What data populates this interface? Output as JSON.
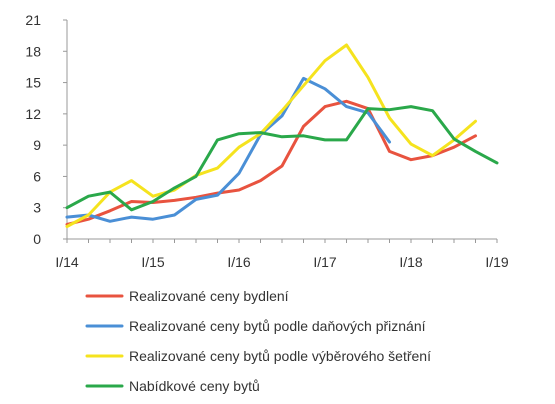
{
  "chart_data": {
    "type": "line",
    "title": "",
    "xlabel": "",
    "ylabel": "",
    "ylim": [
      0,
      21
    ],
    "yticks": [
      0,
      3,
      6,
      9,
      12,
      15,
      18,
      21
    ],
    "xlim": [
      0,
      20
    ],
    "xticks": [
      {
        "label": "I/14",
        "x": 0
      },
      {
        "label": "I/15",
        "x": 4
      },
      {
        "label": "I/16",
        "x": 8
      },
      {
        "label": "I/17",
        "x": 12
      },
      {
        "label": "I/18",
        "x": 16
      },
      {
        "label": "I/19",
        "x": 20
      }
    ],
    "grid": false,
    "legend_position": "bottom",
    "series": [
      {
        "name": "Realizované ceny bydlení",
        "color": "#e8533f",
        "x": [
          0,
          1,
          2,
          3,
          4,
          5,
          6,
          7,
          8,
          9,
          10,
          11,
          12,
          13,
          14,
          15,
          16,
          17,
          18,
          19
        ],
        "values": [
          1.4,
          1.9,
          2.7,
          3.6,
          3.5,
          3.7,
          4.0,
          4.4,
          4.7,
          5.6,
          7.0,
          10.8,
          12.7,
          13.2,
          12.5,
          8.4,
          7.6,
          8.0,
          8.8,
          9.9
        ]
      },
      {
        "name": "Realizované ceny bytů podle daňových přiznání",
        "color": "#4a8fd6",
        "x": [
          0,
          1,
          2,
          3,
          4,
          5,
          6,
          7,
          8,
          9,
          10,
          11,
          12,
          13,
          14,
          15
        ],
        "values": [
          2.1,
          2.3,
          1.7,
          2.1,
          1.9,
          2.3,
          3.8,
          4.2,
          6.3,
          10.0,
          11.8,
          15.4,
          14.4,
          12.7,
          12.1,
          9.3
        ]
      },
      {
        "name": "Realizované ceny bytů podle výběrového šetření",
        "color": "#f5e31e",
        "x": [
          0,
          1,
          2,
          3,
          4,
          5,
          6,
          7,
          8,
          9,
          10,
          11,
          12,
          13,
          14,
          15,
          16,
          17,
          18,
          19
        ],
        "values": [
          1.2,
          2.3,
          4.5,
          5.6,
          4.1,
          4.7,
          6.1,
          6.8,
          8.8,
          10.1,
          12.3,
          14.7,
          17.1,
          18.6,
          15.5,
          11.6,
          9.1,
          8.0,
          9.5,
          11.3
        ]
      },
      {
        "name": "Nabídkové ceny bytů",
        "color": "#2aa84a",
        "x": [
          0,
          1,
          2,
          3,
          4,
          5,
          6,
          7,
          8,
          9,
          10,
          11,
          12,
          13,
          14,
          15,
          16,
          17,
          18,
          19,
          20
        ],
        "values": [
          3.0,
          4.1,
          4.5,
          2.8,
          3.6,
          4.9,
          6.0,
          9.5,
          10.1,
          10.2,
          9.8,
          9.9,
          9.5,
          9.5,
          12.5,
          12.4,
          12.7,
          12.3,
          9.6,
          8.4,
          7.3
        ]
      }
    ]
  }
}
